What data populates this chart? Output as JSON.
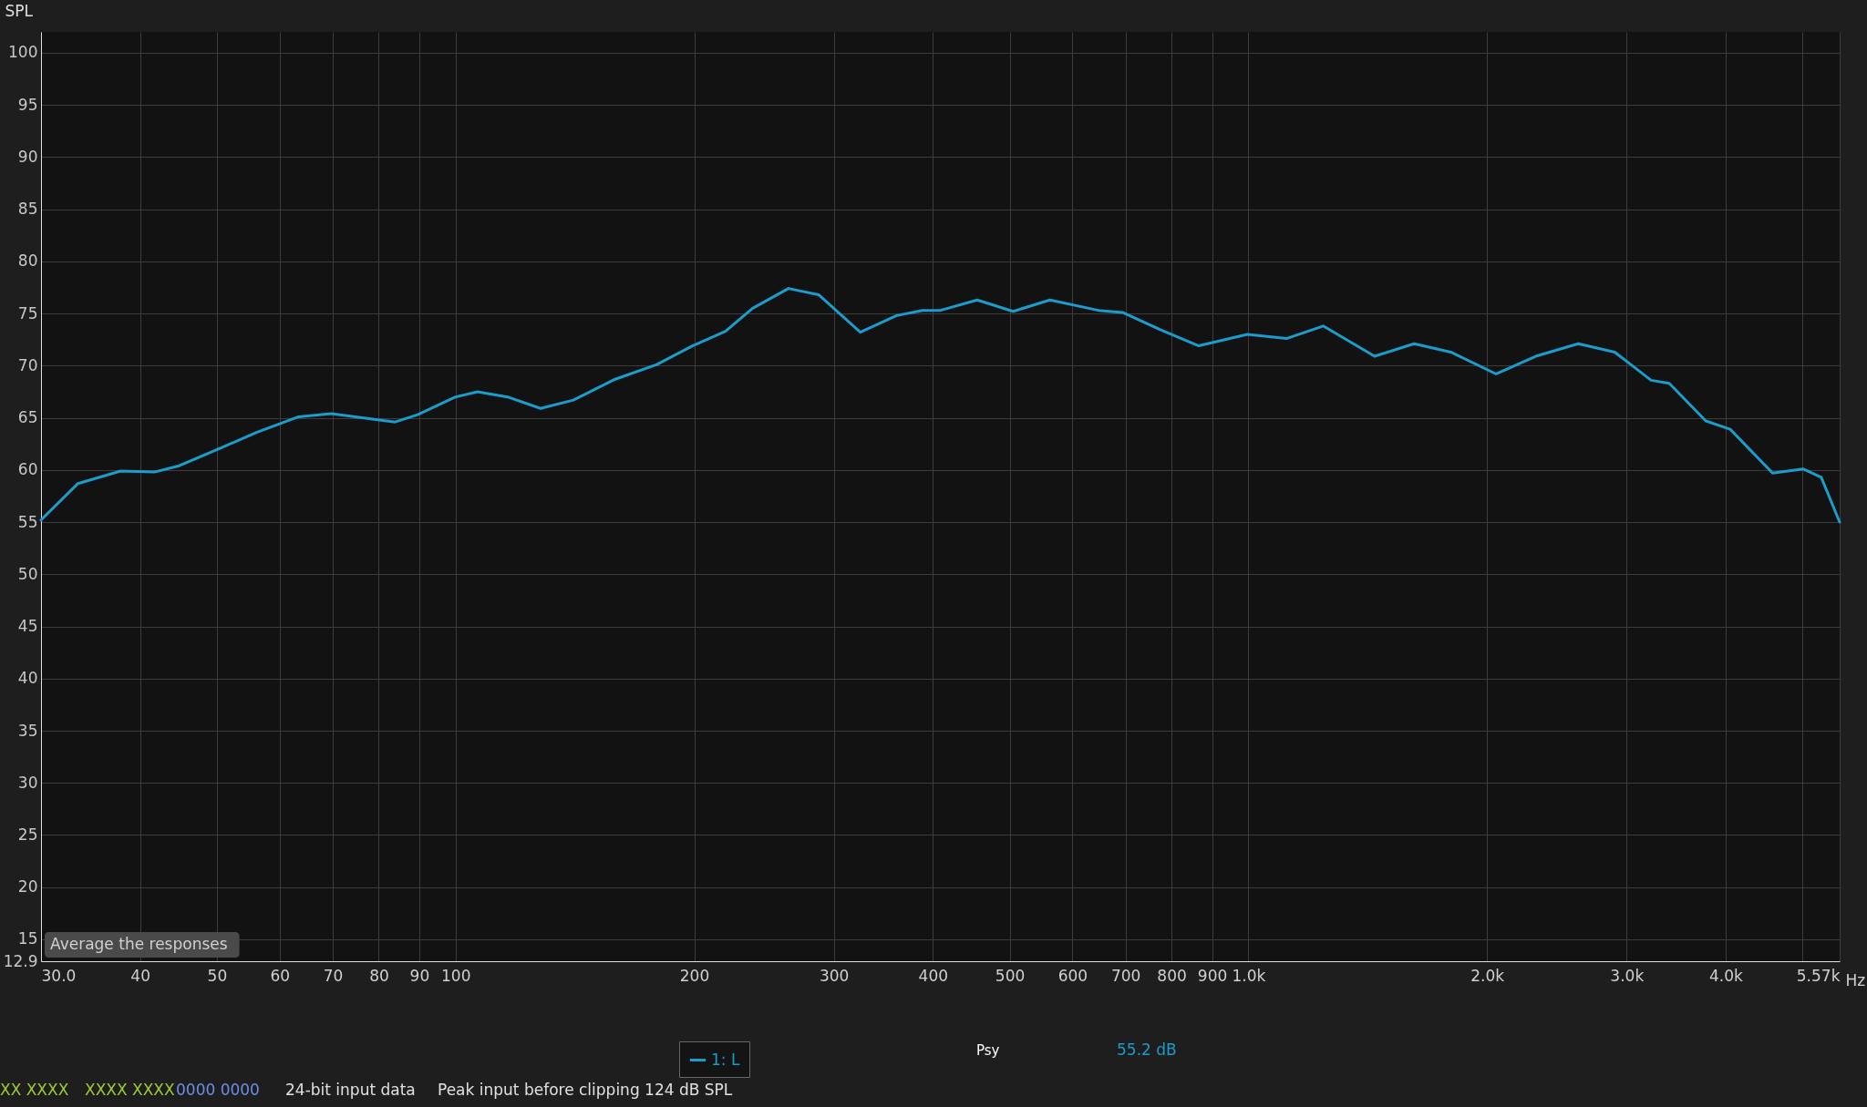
{
  "chart_data": {
    "type": "line",
    "ylabel": "SPL",
    "log": "x",
    "grid": true,
    "legend": "bottom",
    "marker": "none",
    "line_style": "solid",
    "xlim": [
      30,
      5570
    ],
    "ylim": [
      12.9,
      102
    ],
    "xticks": [
      {
        "value": 30,
        "label": "30.0"
      },
      40,
      50,
      60,
      70,
      80,
      90,
      100,
      200,
      300,
      400,
      500,
      600,
      700,
      800,
      900,
      {
        "value": 1000,
        "label": "1.0k"
      },
      {
        "value": 2000,
        "label": "2.0k"
      },
      {
        "value": 3000,
        "label": "3.0k"
      },
      {
        "value": 4000,
        "label": "4.0k"
      },
      {
        "value": 5000,
        "label": null
      },
      {
        "value": 5570,
        "label": "5.57k"
      }
    ],
    "xlabel": "Hz",
    "yticks": [
      {
        "value": 12.9,
        "label": "12.9"
      },
      15,
      20,
      25,
      30,
      35,
      40,
      45,
      50,
      55,
      60,
      65,
      70,
      75,
      80,
      85,
      90,
      95,
      100
    ],
    "x": [
      30,
      33.4,
      37.8,
      41.7,
      44.8,
      50.2,
      56.1,
      63.4,
      69.7,
      83.9,
      89.6,
      100,
      106.6,
      116.3,
      128,
      140.8,
      159,
      179.4,
      199,
      219,
      237,
      263,
      287,
      324,
      360,
      388,
      409,
      455,
      505,
      562,
      647,
      694,
      772,
      866,
      997,
      1117,
      1243,
      1443,
      1619,
      1800,
      2054,
      2304,
      2607,
      2898,
      3221,
      3396,
      3776,
      4053,
      4585,
      5008,
      5280,
      5570
    ],
    "series": [
      {
        "name": "1: L",
        "color": "#1b9ccb",
        "values": [
          55.2,
          58.7,
          59.9,
          59.8,
          60.4,
          62.0,
          63.6,
          65.1,
          65.4,
          64.6,
          65.3,
          67.0,
          67.5,
          67.0,
          65.9,
          66.7,
          68.7,
          70.1,
          71.9,
          73.3,
          75.5,
          77.4,
          76.8,
          73.2,
          74.8,
          75.3,
          75.3,
          76.3,
          75.2,
          76.3,
          75.3,
          75.1,
          73.5,
          71.9,
          73.0,
          72.6,
          73.8,
          70.9,
          72.1,
          71.3,
          69.2,
          70.9,
          72.1,
          71.3,
          68.6,
          68.3,
          64.7,
          63.9,
          59.7,
          60.1,
          59.3,
          55.0
        ]
      }
    ],
    "annotations": [
      "Average the responses",
      "Psy",
      "55.2 dB",
      "XX XXXX",
      "XXXX XXXX",
      "0000 0000",
      "24-bit input data",
      "Peak input before clipping 124 dB SPL"
    ]
  }
}
